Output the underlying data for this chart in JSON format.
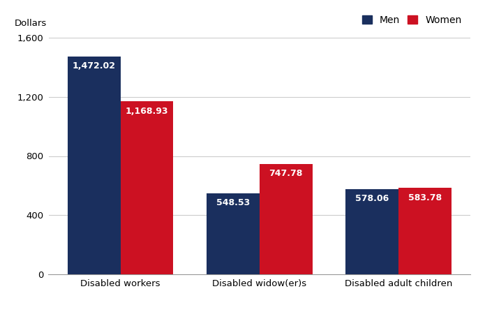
{
  "categories": [
    "Disabled workers",
    "Disabled widow(er)s",
    "Disabled adult children"
  ],
  "men_values": [
    1472.02,
    548.53,
    578.06
  ],
  "women_values": [
    1168.93,
    747.78,
    583.78
  ],
  "men_color": "#1a2f5e",
  "women_color": "#cc1122",
  "ylabel": "Dollars",
  "ylim": [
    0,
    1600
  ],
  "yticks": [
    0,
    400,
    800,
    1200,
    1600
  ],
  "ytick_labels": [
    "0",
    "400",
    "800",
    "1,200",
    "1,600"
  ],
  "legend_men": "Men",
  "legend_women": "Women",
  "bar_width": 0.38,
  "label_fontsize": 9,
  "tick_fontsize": 9.5,
  "ylabel_fontsize": 9.5,
  "background_color": "#ffffff",
  "grid_color": "#cccccc",
  "text_color": "#ffffff"
}
